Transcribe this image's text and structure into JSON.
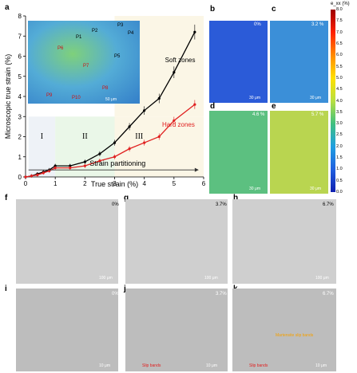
{
  "panel_a": {
    "letter": "a",
    "chart_data": {
      "type": "line",
      "xlabel": "True strain (%)",
      "ylabel": "Microscopic true strain (%)",
      "xlim": [
        0,
        6
      ],
      "ylim": [
        0,
        8
      ],
      "xticks": [
        "0",
        "1",
        "2",
        "3",
        "4",
        "5",
        "6"
      ],
      "yticks": [
        "0",
        "1",
        "2",
        "3",
        "4",
        "5",
        "6",
        "7",
        "8"
      ],
      "series": [
        {
          "name": "Soft zones",
          "color": "#000000",
          "x": [
            0,
            0.2,
            0.4,
            0.6,
            0.8,
            1.0,
            1.5,
            2.0,
            2.5,
            3.0,
            3.5,
            4.0,
            4.5,
            5.0,
            5.7
          ],
          "y": [
            0,
            0.05,
            0.15,
            0.25,
            0.35,
            0.55,
            0.55,
            0.75,
            1.15,
            1.7,
            2.5,
            3.3,
            3.9,
            5.2,
            7.2
          ]
        },
        {
          "name": "Hard zones",
          "color": "#e02020",
          "x": [
            0,
            0.2,
            0.4,
            0.6,
            0.8,
            1.0,
            1.5,
            2.0,
            2.5,
            3.0,
            3.5,
            4.0,
            4.5,
            5.0,
            5.7
          ],
          "y": [
            0,
            0.05,
            0.1,
            0.2,
            0.3,
            0.45,
            0.45,
            0.55,
            0.8,
            1.0,
            1.4,
            1.7,
            2.0,
            2.8,
            3.6
          ]
        }
      ],
      "regions": [
        {
          "label": "I",
          "x0": 0.1,
          "x1": 1.0,
          "color": "#eef2f7"
        },
        {
          "label": "II",
          "x0": 1.0,
          "x1": 3.0,
          "color": "#eaf7e8"
        },
        {
          "label": "III",
          "x0": 3.0,
          "x1": 6.0,
          "color": "#fbf6e6"
        }
      ],
      "annotation": "Strain partitioning",
      "inset_labels": [
        "P1",
        "P2",
        "P3",
        "P4",
        "P5",
        "P6",
        "P7",
        "P8",
        "P9",
        "P10"
      ],
      "inset_scale": "50 μm"
    }
  },
  "dic_panels": [
    {
      "letter": "b",
      "pct": "0%",
      "scale": "30 μm"
    },
    {
      "letter": "c",
      "pct": "3.2 %",
      "scale": "30 μm"
    },
    {
      "letter": "d",
      "pct": "4.6 %",
      "scale": "30 μm"
    },
    {
      "letter": "e",
      "pct": "5.7 %",
      "scale": "30 μm"
    }
  ],
  "colorbar": {
    "title": "e_xx (%)",
    "ticks": [
      "8.0",
      "7.5",
      "7.0",
      "6.5",
      "6.0",
      "5.5",
      "5.0",
      "4.5",
      "4.0",
      "3.5",
      "3.0",
      "2.5",
      "2.0",
      "1.5",
      "1.0",
      "0.5",
      "0.0"
    ]
  },
  "optical_panels": [
    {
      "letter": "f",
      "pct": "0%",
      "scale": "100 μm"
    },
    {
      "letter": "g",
      "pct": "3.7%",
      "scale": "100 μm"
    },
    {
      "letter": "h",
      "pct": "6.7%",
      "scale": "100 μm"
    }
  ],
  "sem_panels": [
    {
      "letter": "i",
      "pct": "0%",
      "scale": "10 μm"
    },
    {
      "letter": "j",
      "pct": "3.7%",
      "scale": "10 μm",
      "note": "Slip bands"
    },
    {
      "letter": "k",
      "pct": "6.7%",
      "scale": "10 μm",
      "note": "Slip bands",
      "note2": "Martensite slip bands"
    }
  ]
}
